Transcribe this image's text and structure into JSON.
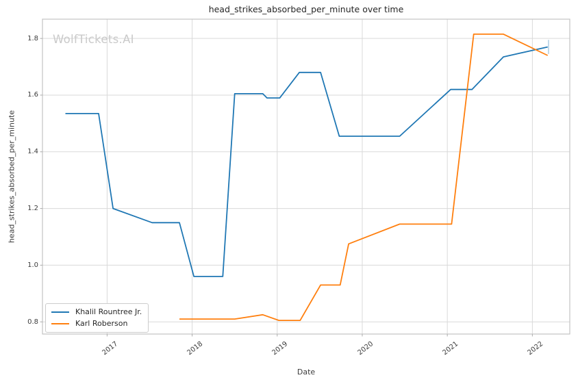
{
  "watermark": {
    "text": "WolfTickets.AI"
  },
  "colors": {
    "grid": "#d9d9d9",
    "spine": "#c3c3c3",
    "tick": "#ababab",
    "title_text": "#262626",
    "tick_text": "#3b3b3b",
    "watermark": "#cacaca",
    "background": "#ffffff",
    "series_blue": "#1f77b4",
    "series_orange": "#ff7f0e"
  },
  "chart_data": {
    "type": "line",
    "title": "head_strikes_absorbed_per_minute over time",
    "xlabel": "Date",
    "ylabel": "head_strikes_absorbed_per_minute",
    "xlim": [
      2016.24,
      2022.44
    ],
    "ylim": [
      0.757,
      1.868
    ],
    "grid": true,
    "legend_position": "lower left",
    "xticks": [
      "2017",
      "2018",
      "2019",
      "2020",
      "2021",
      "2022"
    ],
    "xtick_values": [
      2017,
      2018,
      2019,
      2020,
      2021,
      2022
    ],
    "yticks": [
      "0.8",
      "1.0",
      "1.2",
      "1.4",
      "1.6",
      "1.8"
    ],
    "ytick_values": [
      0.8,
      1.0,
      1.2,
      1.4,
      1.6,
      1.8
    ],
    "series": [
      {
        "name": "Khalil Rountree Jr.",
        "color": "#1f77b4",
        "x": [
          2016.51,
          2016.9,
          2017.07,
          2017.53,
          2017.85,
          2018.02,
          2018.36,
          2018.5,
          2018.83,
          2018.88,
          2019.03,
          2019.26,
          2019.51,
          2019.73,
          2020.44,
          2021.04,
          2021.29,
          2021.66,
          2022.18
        ],
        "y": [
          1.535,
          1.535,
          1.2,
          1.15,
          1.15,
          0.96,
          0.96,
          1.605,
          1.605,
          1.59,
          1.59,
          1.68,
          1.68,
          1.455,
          1.455,
          1.62,
          1.62,
          1.735,
          1.77
        ]
      },
      {
        "name": "Karl Roberson",
        "color": "#ff7f0e",
        "x": [
          2017.85,
          2018.5,
          2018.83,
          2019.02,
          2019.27,
          2019.51,
          2019.74,
          2019.84,
          2020.44,
          2021.05,
          2021.31,
          2021.66,
          2022.18
        ],
        "y": [
          0.81,
          0.81,
          0.825,
          0.805,
          0.805,
          0.93,
          0.93,
          1.075,
          1.145,
          1.145,
          1.815,
          1.815,
          1.74
        ]
      }
    ],
    "end_marker": {
      "series_index": 0,
      "x": 2022.19,
      "y_low": 1.745,
      "y_high": 1.795
    }
  }
}
